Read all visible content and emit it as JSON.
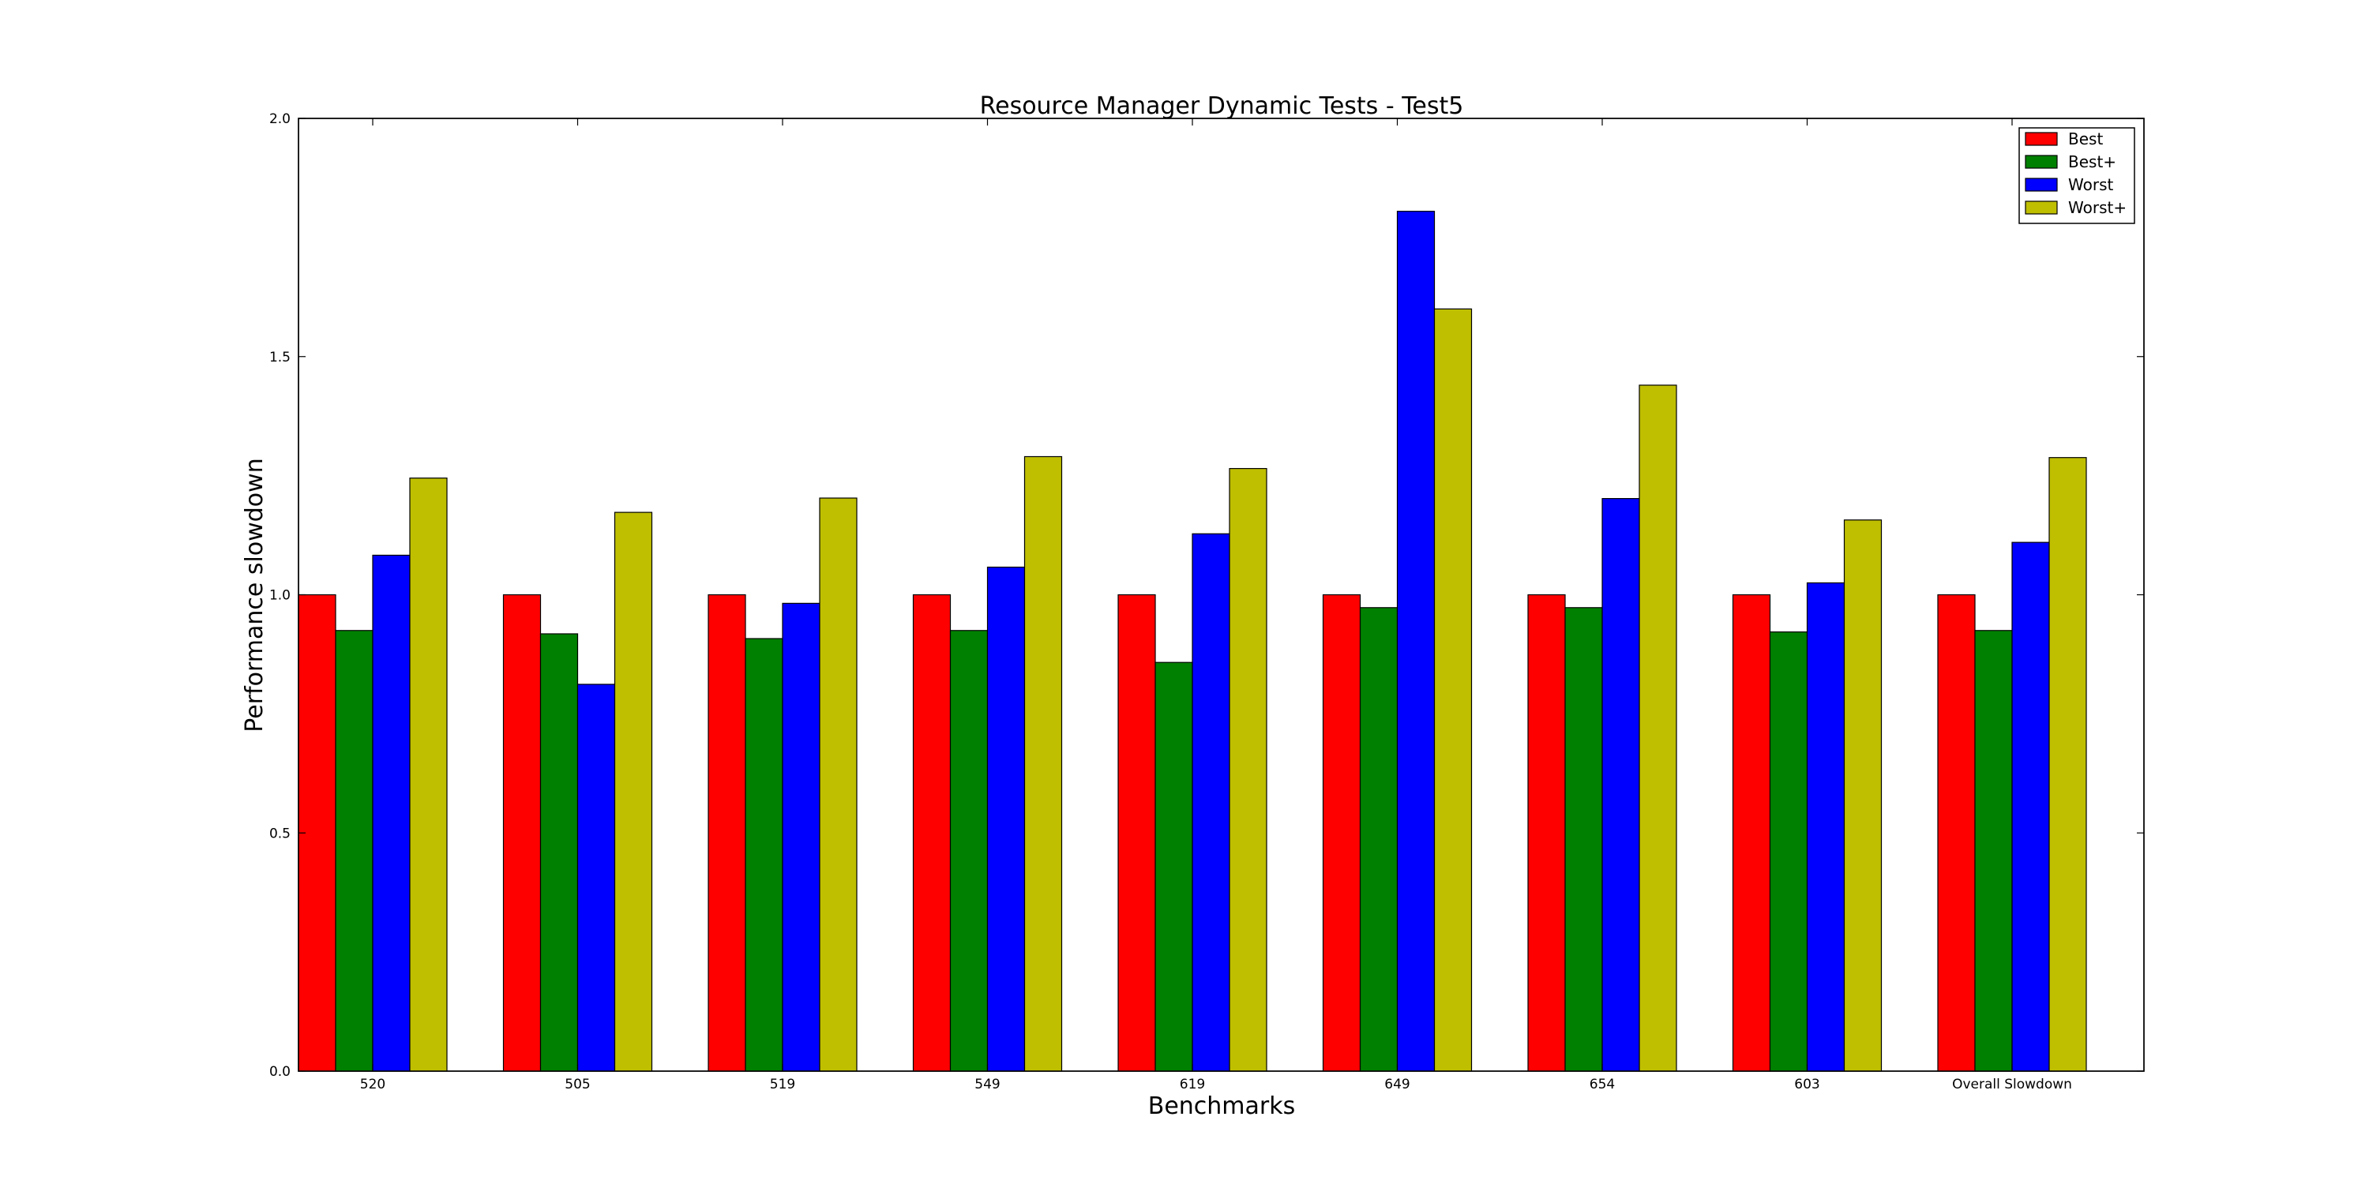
{
  "chart_data": {
    "type": "bar",
    "title": "Resource Manager Dynamic Tests - Test5",
    "xlabel": "Benchmarks",
    "ylabel": "Performance slowdown",
    "ylim": [
      0,
      2.0
    ],
    "yticks": [
      "0.0",
      "0.5",
      "1.0",
      "1.5",
      "2.0"
    ],
    "categories": [
      "520",
      "505",
      "519",
      "549",
      "619",
      "649",
      "654",
      "603",
      "Overall Slowdown"
    ],
    "series": [
      {
        "name": "Best",
        "color": "#ff0000",
        "values": [
          1.0,
          1.0,
          1.0,
          1.0,
          1.0,
          1.0,
          1.0,
          1.0,
          1.0
        ]
      },
      {
        "name": "Best+",
        "color": "#008000",
        "values": [
          0.925,
          0.918,
          0.908,
          0.925,
          0.858,
          0.973,
          0.973,
          0.922,
          0.925
        ]
      },
      {
        "name": "Worst",
        "color": "#0000ff",
        "values": [
          1.083,
          0.812,
          0.982,
          1.058,
          1.128,
          1.805,
          1.202,
          1.025,
          1.11
        ]
      },
      {
        "name": "Worst+",
        "color": "#bfbf00",
        "values": [
          1.245,
          1.173,
          1.203,
          1.29,
          1.265,
          1.6,
          1.44,
          1.157,
          1.288
        ]
      }
    ],
    "grid": false,
    "legend_position": "top-right"
  }
}
